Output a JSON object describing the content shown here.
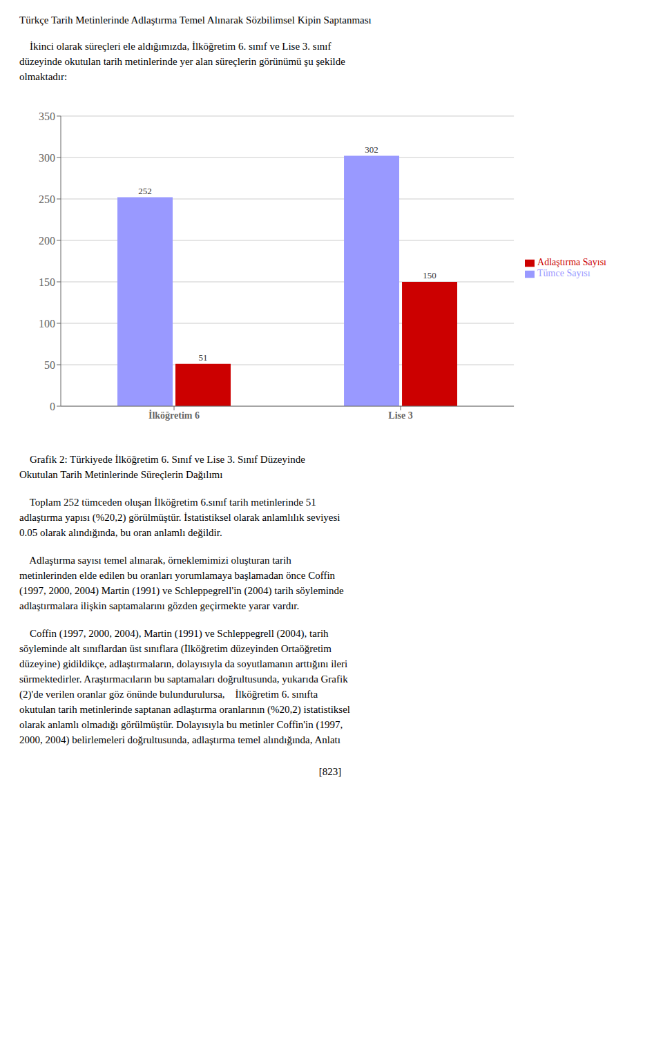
{
  "title": "Türkçe Tarih Metinlerinde Adlaştırma Temel Alınarak Sözbilimsel Kipin Saptanması",
  "subtitle": [
    "    İkinci olarak süreçleri ele aldığımızda, İlköğretim 6. sınıf ve Lise 3. sınıf",
    "düzeyinde okutulan tarih metinlerinde yer alan süreçlerin görünümü şu şekilde",
    "olmaktadır:"
  ],
  "chart_data": {
    "type": "bar",
    "categories": [
      "İlköğretim 6",
      "Lise 3"
    ],
    "series": [
      {
        "name": "Tümce Sayısı",
        "color": "#9999FF",
        "values": [
          252,
          302
        ]
      },
      {
        "name": "Adlaştırma Sayısı",
        "color": "#CC0000",
        "values": [
          51,
          150
        ]
      }
    ],
    "ylim": [
      0,
      350
    ],
    "yticks": [
      0,
      50,
      100,
      150,
      200,
      250,
      300,
      350
    ],
    "grid": true,
    "legend": "right",
    "data_labels": true
  },
  "caption": [
    "    Grafik 2: Türkiyede İlköğretim 6. Sınıf ve Lise 3. Sınıf Düzeyinde",
    "Okutulan Tarih Metinlerinde Süreçlerin Dağılımı"
  ],
  "annotations": [
    [
      "    Toplam 252 tümceden oluşan İlköğretim 6.sınıf tarih metinlerinde 51",
      "adlaştırma yapısı (%20,2) görülmüştür. İstatistiksel olarak anlamlılık seviyesi",
      "0.05 olarak alındığında, bu oran anlamlı değildir."
    ],
    [
      "    Adlaştırma sayısı temel alınarak, örneklemimizi oluşturan tarih",
      "metinlerinden elde edilen bu oranları yorumlamaya başlamadan önce Coffin",
      "(1997, 2000, 2004) Martin (1991) ve Schleppegrell'in (2004) tarih söyleminde",
      "adlaştırmalara ilişkin saptamalarını gözden geçirmekte yarar vardır."
    ],
    [
      "    Coffin (1997, 2000, 2004), Martin (1991) ve Schleppegrell (2004), tarih",
      "söyleminde alt sınıflardan üst sınıflara (İlköğretim düzeyinden Ortaöğretim",
      "düzeyine) gidildikçe, adlaştırmaların, dolayısıyla da soyutlamanın arttığını ileri",
      "sürmektedirler. Araştırmacıların bu saptamaları doğrultusunda, yukarıda Grafik",
      "(2)'de verilen oranlar göz önünde bulundurulursa,    İlköğretim 6. sınıfta",
      "okutulan tarih metinlerinde saptanan adlaştırma oranlarının (%20,2) istatistiksel",
      "olarak anlamlı olmadığı görülmüştür. Dolayısıyla bu metinler Coffin'in (1997,",
      "2000, 2004) belirlemeleri doğrultusunda, adlaştırma temel alındığında, Anlatı"
    ]
  ],
  "footer": "[823]"
}
